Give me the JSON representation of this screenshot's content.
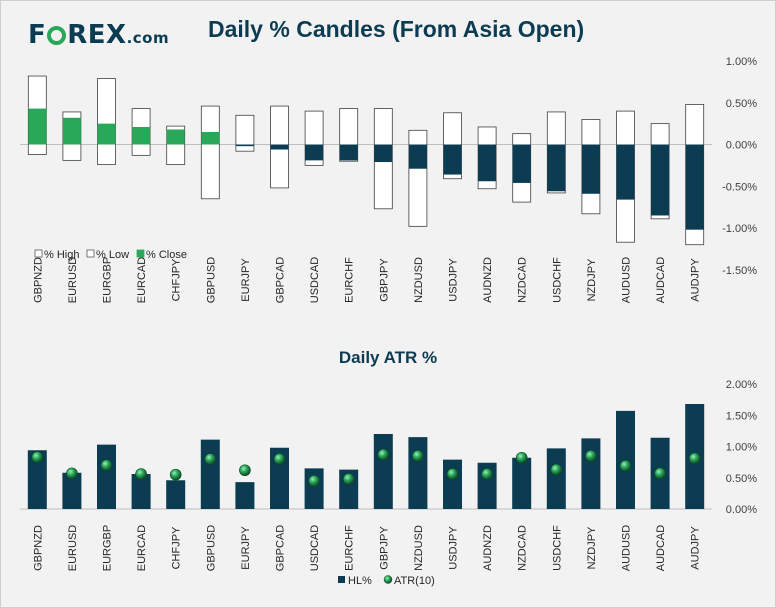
{
  "logo": {
    "prefix": "F",
    "suffix": "REX",
    "domain": ".com"
  },
  "colors": {
    "navy": "#0c3c52",
    "green": "#2aa85a",
    "background": "#f2f2f2",
    "box_border": "#404040"
  },
  "chart_data": [
    {
      "type": "bar",
      "title": "Daily % Candles (From Asia Open)",
      "ylim": [
        -1.5,
        1.0
      ],
      "yticks": [
        "1.00%",
        "0.50%",
        "0.00%",
        "-0.50%",
        "-1.00%",
        "-1.50%"
      ],
      "ytick_values": [
        1.0,
        0.5,
        0.0,
        -0.5,
        -1.0,
        -1.5
      ],
      "categories": [
        "GBPNZD",
        "EURUSD",
        "EURGBP",
        "EURCAD",
        "CHFJPY",
        "GBPUSD",
        "EURJPY",
        "GBPCAD",
        "USDCAD",
        "EURCHF",
        "GBPJPY",
        "NZDUSD",
        "USDJPY",
        "AUDNZD",
        "NZDCAD",
        "USDCHF",
        "NZDJPY",
        "AUDUSD",
        "AUDCAD",
        "AUDJPY"
      ],
      "series": [
        {
          "name": "% High",
          "values": [
            0.82,
            0.39,
            0.79,
            0.43,
            0.22,
            0.46,
            0.35,
            0.46,
            0.4,
            0.43,
            0.43,
            0.17,
            0.38,
            0.21,
            0.13,
            0.39,
            0.3,
            0.4,
            0.25,
            0.48
          ]
        },
        {
          "name": "% Low",
          "values": [
            -0.12,
            -0.19,
            -0.24,
            -0.13,
            -0.24,
            -0.65,
            -0.08,
            -0.52,
            -0.25,
            -0.2,
            -0.77,
            -0.98,
            -0.41,
            -0.53,
            -0.69,
            -0.58,
            -0.83,
            -1.17,
            -0.89,
            -1.2
          ]
        },
        {
          "name": "% Close",
          "values": [
            0.43,
            0.32,
            0.25,
            0.21,
            0.18,
            0.15,
            -0.02,
            -0.06,
            -0.19,
            -0.19,
            -0.21,
            -0.29,
            -0.36,
            -0.44,
            -0.46,
            -0.56,
            -0.59,
            -0.66,
            -0.85,
            -1.02
          ]
        }
      ]
    },
    {
      "type": "bar",
      "title": "Daily ATR %",
      "ylim": [
        0.0,
        2.0
      ],
      "yticks": [
        "2.00%",
        "1.50%",
        "1.00%",
        "0.50%",
        "0.00%"
      ],
      "ytick_values": [
        2.0,
        1.5,
        1.0,
        0.5,
        0.0
      ],
      "categories": [
        "GBPNZD",
        "EURUSD",
        "EURGBP",
        "EURCAD",
        "CHFJPY",
        "GBPUSD",
        "EURJPY",
        "GBPCAD",
        "USDCAD",
        "EURCHF",
        "GBPJPY",
        "NZDUSD",
        "USDJPY",
        "AUDNZD",
        "NZDCAD",
        "USDCHF",
        "NZDJPY",
        "AUDUSD",
        "AUDCAD",
        "AUDJPY"
      ],
      "series": [
        {
          "name": "HL%",
          "values": [
            0.94,
            0.58,
            1.03,
            0.56,
            0.46,
            1.11,
            0.43,
            0.98,
            0.65,
            0.63,
            1.2,
            1.15,
            0.79,
            0.74,
            0.82,
            0.97,
            1.13,
            1.57,
            1.14,
            1.68
          ]
        },
        {
          "name": "ATR(10)",
          "values": [
            0.83,
            0.57,
            0.7,
            0.56,
            0.55,
            0.8,
            0.62,
            0.8,
            0.45,
            0.48,
            0.87,
            0.85,
            0.56,
            0.56,
            0.82,
            0.63,
            0.85,
            0.69,
            0.57,
            0.81
          ]
        }
      ]
    }
  ]
}
